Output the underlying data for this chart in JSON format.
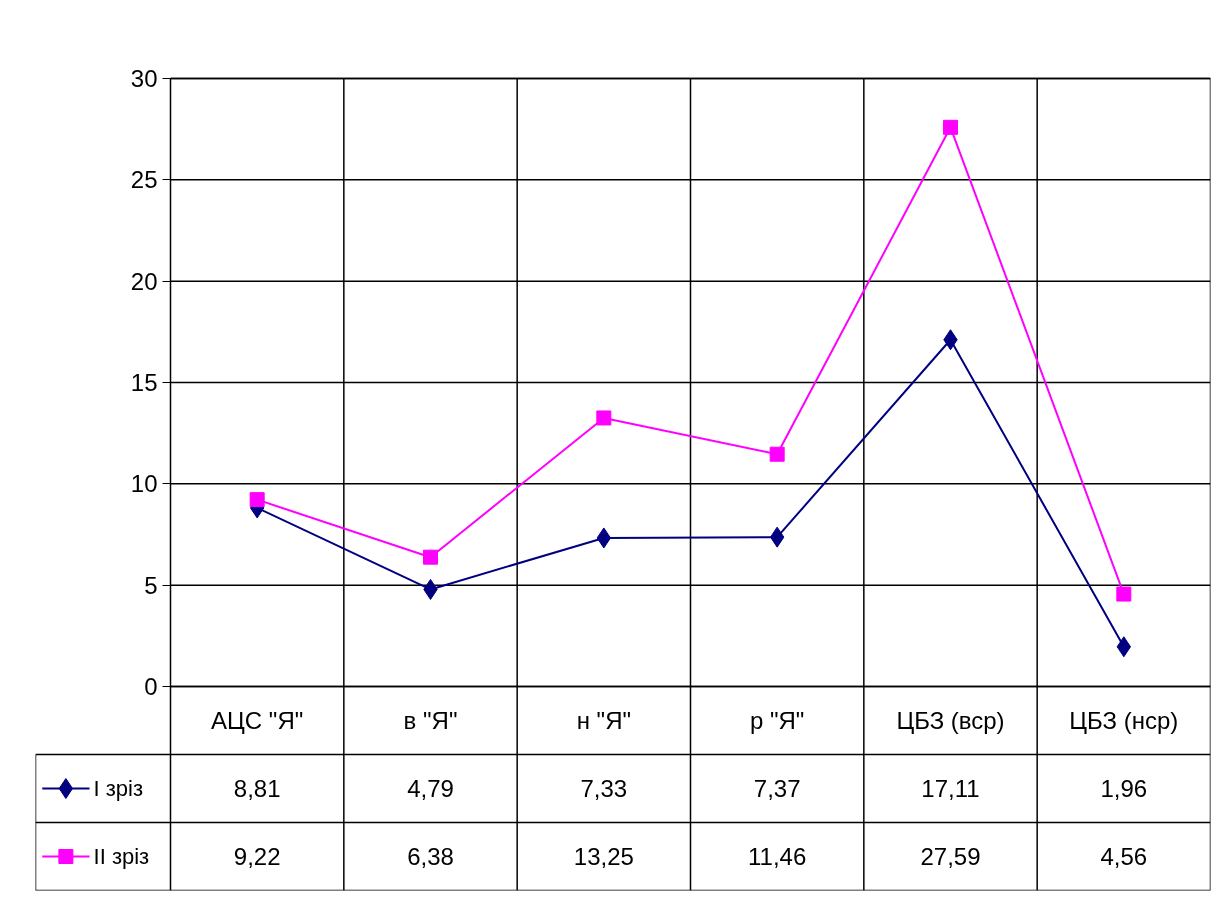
{
  "chart_data": {
    "type": "line",
    "categories": [
      "АЦС \"Я\"",
      "в \"Я\"",
      "н \"Я\"",
      "р \"Я\"",
      "ЦБЗ (вср)",
      "ЦБЗ (нср)"
    ],
    "series": [
      {
        "name": "I зріз",
        "color": "#000080",
        "marker": "diamond",
        "values": [
          8.81,
          4.79,
          7.33,
          7.37,
          17.11,
          1.96
        ],
        "value_labels": [
          "8,81",
          "4,79",
          "7,33",
          "7,37",
          "17,11",
          "1,96"
        ]
      },
      {
        "name": "II зріз",
        "color": "#ff00ff",
        "marker": "square",
        "values": [
          9.22,
          6.38,
          13.25,
          11.46,
          27.59,
          4.56
        ],
        "value_labels": [
          "9,22",
          "6,38",
          "13,25",
          "11,46",
          "27,59",
          "4,56"
        ]
      }
    ],
    "ylim": [
      0,
      30
    ],
    "yticks": [
      0,
      5,
      10,
      15,
      20,
      25,
      30
    ],
    "grid": true,
    "legend": "bottom",
    "line_style": "solid"
  }
}
